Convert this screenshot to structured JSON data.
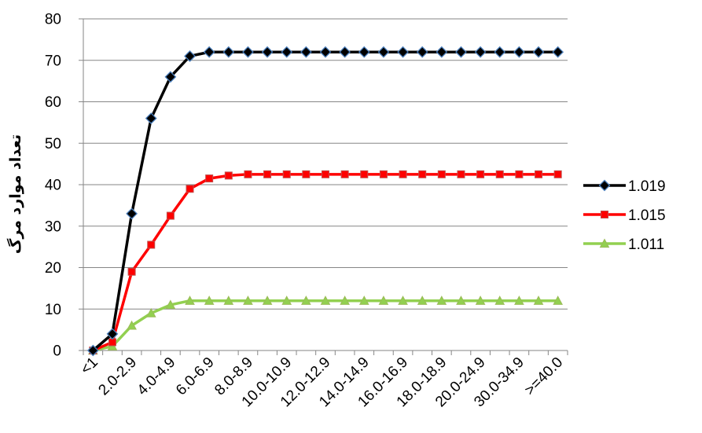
{
  "chart_data": {
    "type": "line",
    "title": "",
    "xlabel": "",
    "ylabel": "تعداد موارد مرگ",
    "ylim": [
      0,
      80
    ],
    "yticks": [
      0,
      10,
      20,
      30,
      40,
      50,
      60,
      70,
      80
    ],
    "grid": "horizontal",
    "legend_position": "right",
    "categories": [
      "<1",
      "1.0-1.9",
      "2.0-2.9",
      "3.0-3.9",
      "4.0-4.9",
      "5.0-5.9",
      "6.0-6.9",
      "7.0-7.9",
      "8.0-8.9",
      "9.0-9.9",
      "10.0-10.9",
      "11.0-11.9",
      "12.0-12.9",
      "13.0-13.9",
      "14.0-14.9",
      "15.0-15.9",
      "16.0-16.9",
      "17.0-17.9",
      "18.0-18.9",
      "19.0-19.9",
      "20.0-24.9",
      "25.0-29.9",
      "30.0-34.9",
      "35.0-39.9",
      ">=40.0"
    ],
    "visible_tick_labels": [
      "<1",
      "2.0-2.9",
      "4.0-4.9",
      "6.0-6.9",
      "8.0-8.9",
      "10.0-10.9",
      "12.0-12.9",
      "14.0-14.9",
      "16.0-16.9",
      "18.0-18.9",
      "20.0-24.9",
      "30.0-34.9",
      ">=40.0"
    ],
    "series": [
      {
        "name": "1.019",
        "color": "#000000",
        "marker": "diamond",
        "marker_fill": "#000000",
        "marker_stroke": "#4a7ebb",
        "values": [
          0,
          4,
          33,
          56,
          66,
          71,
          72,
          72,
          72,
          72,
          72,
          72,
          72,
          72,
          72,
          72,
          72,
          72,
          72,
          72,
          72,
          72,
          72,
          72,
          72
        ]
      },
      {
        "name": "1.015",
        "color": "#ff0000",
        "marker": "square",
        "marker_fill": "#ff0000",
        "marker_stroke": "#c0504d",
        "values": [
          0,
          2,
          19,
          25.5,
          32.5,
          39,
          41.5,
          42.2,
          42.5,
          42.5,
          42.5,
          42.5,
          42.5,
          42.5,
          42.5,
          42.5,
          42.5,
          42.5,
          42.5,
          42.5,
          42.5,
          42.5,
          42.5,
          42.5,
          42.5
        ]
      },
      {
        "name": "1.011",
        "color": "#92d050",
        "marker": "triangle",
        "marker_fill": "#92d050",
        "marker_stroke": "#9bbb59",
        "values": [
          0,
          1,
          6,
          9,
          11,
          12,
          12,
          12,
          12,
          12,
          12,
          12,
          12,
          12,
          12,
          12,
          12,
          12,
          12,
          12,
          12,
          12,
          12,
          12,
          12
        ]
      }
    ]
  }
}
